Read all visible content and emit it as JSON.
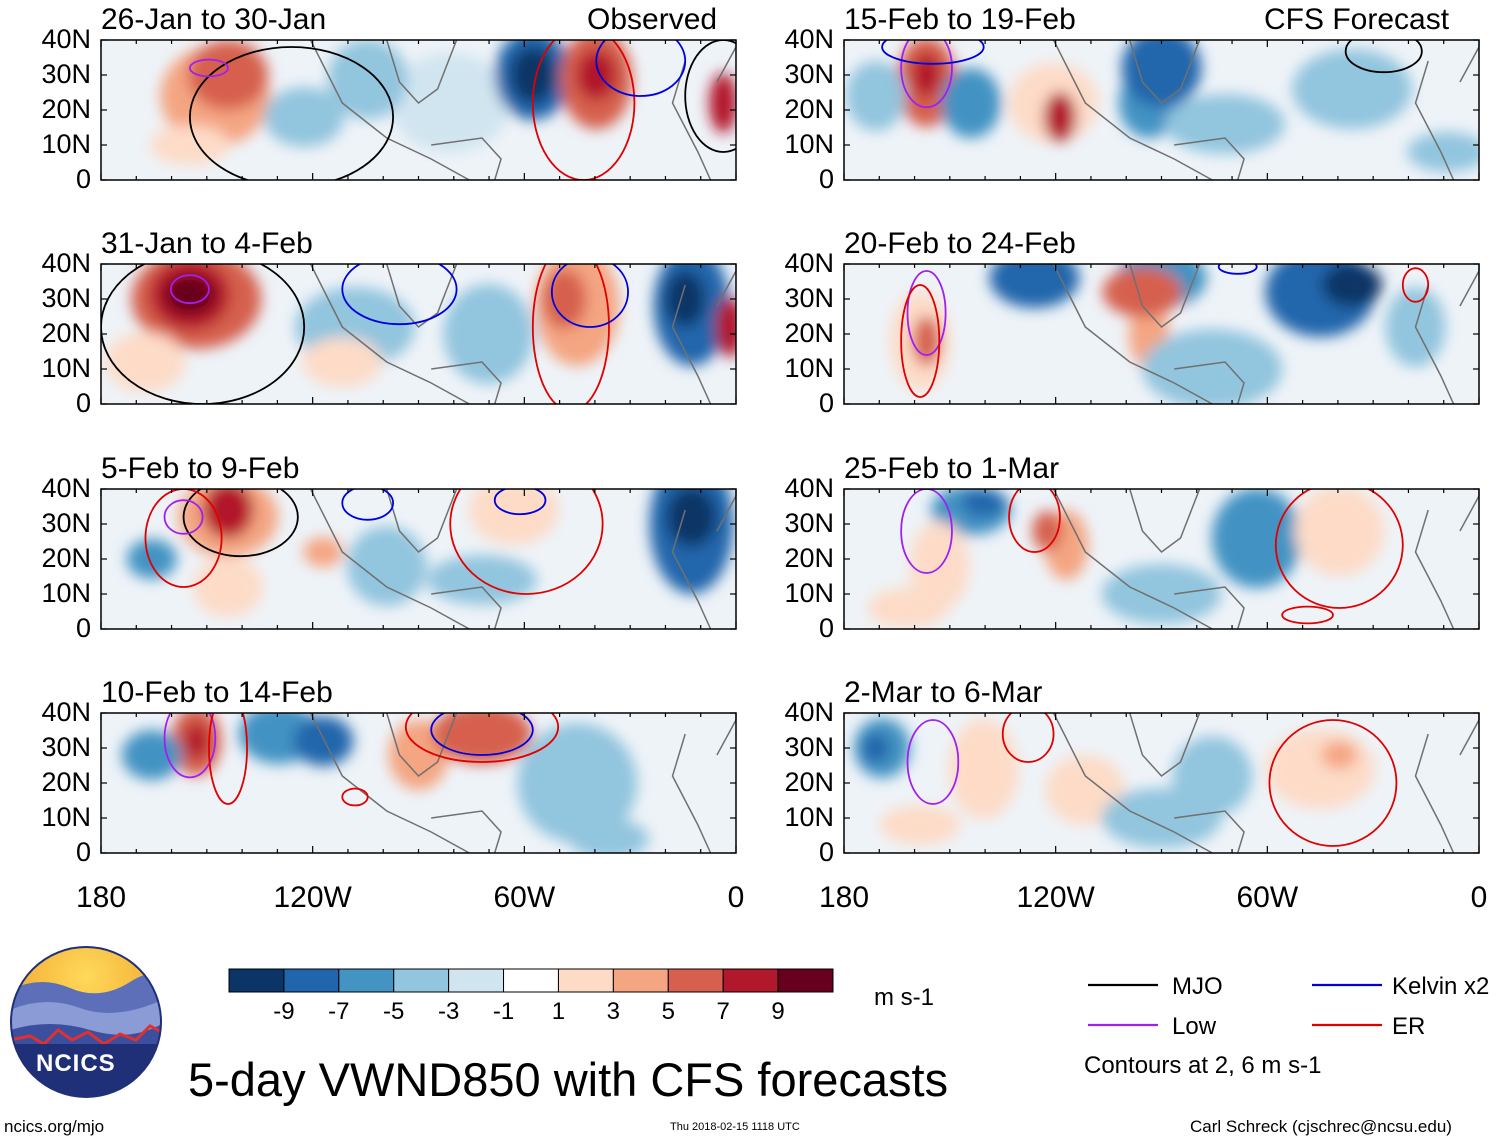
{
  "figure": {
    "title": "5-day VWND850 with CFS forecasts",
    "units": "m s-1",
    "website": "ncics.org/mjo",
    "timestamp": "Thu 2018-02-15 1118 UTC",
    "author": "Carl Schreck (cjschrec@ncsu.edu)",
    "logo_text": "NCICS"
  },
  "columns": {
    "left_tag": "Observed",
    "right_tag": "CFS Forecast"
  },
  "panels": {
    "left": [
      {
        "date": "26-Jan to 30-Jan"
      },
      {
        "date": "31-Jan to 4-Feb"
      },
      {
        "date": "5-Feb to 9-Feb"
      },
      {
        "date": "10-Feb to 14-Feb"
      }
    ],
    "right": [
      {
        "date": "15-Feb to 19-Feb"
      },
      {
        "date": "20-Feb to 24-Feb"
      },
      {
        "date": "25-Feb to 1-Mar"
      },
      {
        "date": "2-Mar to 6-Mar"
      }
    ]
  },
  "axes": {
    "lat_labels": [
      "40N",
      "30N",
      "20N",
      "10N",
      "0"
    ],
    "lon_labels": [
      "180",
      "120W",
      "60W",
      "0"
    ]
  },
  "colorbar": {
    "labels": [
      "-9",
      "-7",
      "-5",
      "-3",
      "-1",
      "1",
      "3",
      "5",
      "7",
      "9"
    ],
    "colors": [
      "#0a3566",
      "#2166ac",
      "#4393c3",
      "#92c5de",
      "#d1e5f0",
      "#ffffff",
      "#fddbc7",
      "#f4a582",
      "#d6604d",
      "#b2182b",
      "#67001f"
    ]
  },
  "legend": {
    "items": [
      {
        "label": "MJO",
        "color": "#000000"
      },
      {
        "label": "Kelvin x2",
        "color": "#0000dd"
      },
      {
        "label": "Low",
        "color": "#a020f0"
      },
      {
        "label": "ER",
        "color": "#e00000"
      }
    ],
    "note": "Contours at 2, 6 m s-1"
  }
}
